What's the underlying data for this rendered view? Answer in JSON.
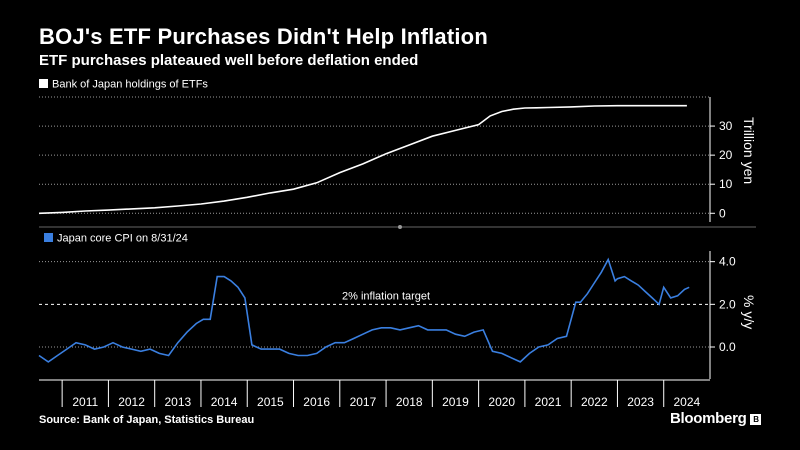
{
  "title": "BOJ's ETF Purchases Didn't Help Inflation",
  "subtitle": "ETF purchases plateaued well before deflation ended",
  "source": "Source: Bank of Japan, Statistics Bureau",
  "brand": "Bloomberg",
  "colors": {
    "background": "#000000",
    "etf_line": "#ffffff",
    "cpi_line": "#3a7fe0",
    "grid": "#9a9a9a",
    "text": "#ffffff"
  },
  "chart_data": [
    {
      "type": "line",
      "legend": "Bank of Japan holdings of ETFs",
      "ylabel": "Trillion yen",
      "ylim": [
        -3,
        40
      ],
      "yticks": [
        0,
        10,
        20,
        30
      ],
      "ytick_labels": [
        "0",
        "10",
        "20",
        "30"
      ],
      "x_range": [
        2010.5,
        2025.0
      ],
      "series": [
        {
          "name": "Bank of Japan holdings of ETFs",
          "x": [
            2010.5,
            2011.0,
            2011.5,
            2012.0,
            2012.5,
            2013.0,
            2013.5,
            2014.0,
            2014.5,
            2015.0,
            2015.5,
            2016.0,
            2016.5,
            2017.0,
            2017.5,
            2018.0,
            2018.5,
            2019.0,
            2019.5,
            2020.0,
            2020.25,
            2020.5,
            2020.75,
            2021.0,
            2021.25,
            2021.5,
            2022.0,
            2022.5,
            2023.0,
            2023.5,
            2024.0,
            2024.5
          ],
          "values": [
            0,
            0.3,
            0.8,
            1.1,
            1.5,
            1.9,
            2.5,
            3.2,
            4.2,
            5.5,
            7.0,
            8.3,
            10.5,
            14.0,
            17.0,
            20.5,
            23.5,
            26.5,
            28.5,
            30.5,
            33.5,
            35.0,
            35.8,
            36.2,
            36.3,
            36.4,
            36.6,
            36.9,
            37.0,
            37.0,
            37.0,
            37.0
          ]
        }
      ]
    },
    {
      "type": "line",
      "legend": "Japan core CPI on 8/31/24",
      "ylabel": "% y/y",
      "ylim": [
        -1.5,
        4.5
      ],
      "yticks": [
        0.0,
        2.0,
        4.0
      ],
      "ytick_labels": [
        "0.0",
        "2.0",
        "4.0"
      ],
      "reference_line": {
        "value": 2.0,
        "label": "2% inflation target"
      },
      "x_range": [
        2010.5,
        2025.0
      ],
      "xticks": [
        2011,
        2012,
        2013,
        2014,
        2015,
        2016,
        2017,
        2018,
        2019,
        2020,
        2021,
        2022,
        2023,
        2024
      ],
      "xtick_labels": [
        "2011",
        "2012",
        "2013",
        "2014",
        "2015",
        "2016",
        "2017",
        "2018",
        "2019",
        "2020",
        "2021",
        "2022",
        "2023",
        "2024"
      ],
      "series": [
        {
          "name": "Japan core CPI",
          "x": [
            2010.5,
            2010.7,
            2010.9,
            2011.1,
            2011.3,
            2011.5,
            2011.7,
            2011.9,
            2012.1,
            2012.3,
            2012.5,
            2012.7,
            2012.9,
            2013.1,
            2013.3,
            2013.5,
            2013.7,
            2013.9,
            2014.05,
            2014.2,
            2014.35,
            2014.5,
            2014.65,
            2014.8,
            2014.95,
            2015.1,
            2015.3,
            2015.5,
            2015.7,
            2015.9,
            2016.1,
            2016.3,
            2016.5,
            2016.7,
            2016.9,
            2017.1,
            2017.3,
            2017.5,
            2017.7,
            2017.9,
            2018.1,
            2018.3,
            2018.5,
            2018.7,
            2018.9,
            2019.1,
            2019.3,
            2019.5,
            2019.7,
            2019.9,
            2020.1,
            2020.3,
            2020.5,
            2020.7,
            2020.9,
            2021.1,
            2021.3,
            2021.5,
            2021.7,
            2021.9,
            2022.1,
            2022.2,
            2022.35,
            2022.5,
            2022.65,
            2022.8,
            2022.95,
            2023.0,
            2023.15,
            2023.3,
            2023.45,
            2023.6,
            2023.75,
            2023.9,
            2024.0,
            2024.15,
            2024.3,
            2024.45,
            2024.55
          ],
          "values": [
            -0.4,
            -0.7,
            -0.4,
            -0.1,
            0.2,
            0.1,
            -0.1,
            0.0,
            0.2,
            0.0,
            -0.1,
            -0.2,
            -0.1,
            -0.3,
            -0.4,
            0.2,
            0.7,
            1.1,
            1.3,
            1.3,
            3.3,
            3.3,
            3.1,
            2.8,
            2.3,
            0.1,
            -0.1,
            -0.1,
            -0.1,
            -0.3,
            -0.4,
            -0.4,
            -0.3,
            0.0,
            0.2,
            0.2,
            0.4,
            0.6,
            0.8,
            0.9,
            0.9,
            0.8,
            0.9,
            1.0,
            0.8,
            0.8,
            0.8,
            0.6,
            0.5,
            0.7,
            0.8,
            -0.2,
            -0.3,
            -0.5,
            -0.7,
            -0.3,
            0.0,
            0.1,
            0.4,
            0.5,
            2.1,
            2.1,
            2.5,
            3.0,
            3.5,
            4.1,
            3.1,
            3.2,
            3.3,
            3.1,
            2.9,
            2.6,
            2.3,
            2.0,
            2.8,
            2.3,
            2.4,
            2.7,
            2.8
          ]
        }
      ]
    }
  ]
}
